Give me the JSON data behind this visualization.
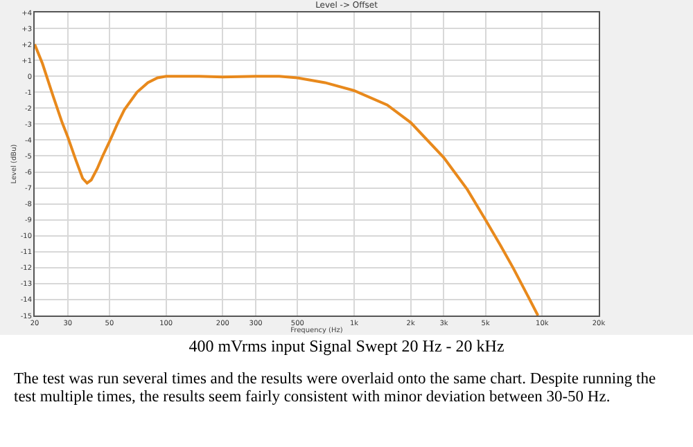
{
  "chart_data": {
    "type": "line",
    "title": "Level -> Offset",
    "xlabel": "Frequency (Hz)",
    "ylabel": "Level (dBu)",
    "annotations": [
      "400 mVrms input Signal Swept 20 Hz - 20 kHz",
      "The test was run several times and the results were overlaid onto the same chart.  Despite running the test multiple times, the results seem fairly consistent with minor deviation between 30-50 Hz."
    ],
    "log": "x",
    "grid": true,
    "marker": "none",
    "line_style": "solid",
    "xlim": [
      20,
      20000
    ],
    "xticks": [
      20,
      30,
      50,
      100,
      200,
      300,
      500,
      {
        "value": 1000,
        "label": "1k"
      },
      {
        "value": 2000,
        "label": "2k"
      },
      {
        "value": 3000,
        "label": "3k"
      },
      {
        "value": 5000,
        "label": "5k"
      },
      {
        "value": 10000,
        "label": "10k"
      },
      {
        "value": 20000,
        "label": "20k"
      }
    ],
    "ylim": [
      -15,
      4
    ],
    "yticks": [
      {
        "value": 4,
        "label": "+4"
      },
      {
        "value": 3,
        "label": "+3"
      },
      {
        "value": 2,
        "label": "+2"
      },
      {
        "value": 1,
        "label": "+1"
      },
      0,
      -1,
      -2,
      -3,
      -4,
      -5,
      -6,
      -7,
      -8,
      -9,
      -10,
      -11,
      -12,
      -13,
      -14,
      -15
    ],
    "series": [
      {
        "color": "#e8891c",
        "x": [
          20,
          22,
          25,
          28,
          30,
          33,
          36,
          38,
          40,
          43,
          46,
          50,
          55,
          60,
          70,
          80,
          90,
          100,
          150,
          200,
          300,
          400,
          500,
          700,
          1000,
          1500,
          2000,
          3000,
          4000,
          5000,
          6000,
          7000,
          8000,
          9500
        ],
        "values": [
          2,
          0.8,
          -1.2,
          -2.9,
          -3.8,
          -5.2,
          -6.4,
          -6.7,
          -6.5,
          -5.8,
          -5,
          -4.1,
          -3,
          -2.1,
          -1,
          -0.4,
          -0.1,
          0,
          0,
          -0.05,
          0,
          0,
          -0.1,
          -0.4,
          -0.9,
          -1.8,
          -2.9,
          -5.1,
          -7.1,
          -9,
          -10.6,
          -12,
          -13.3,
          -15
        ]
      }
    ]
  }
}
